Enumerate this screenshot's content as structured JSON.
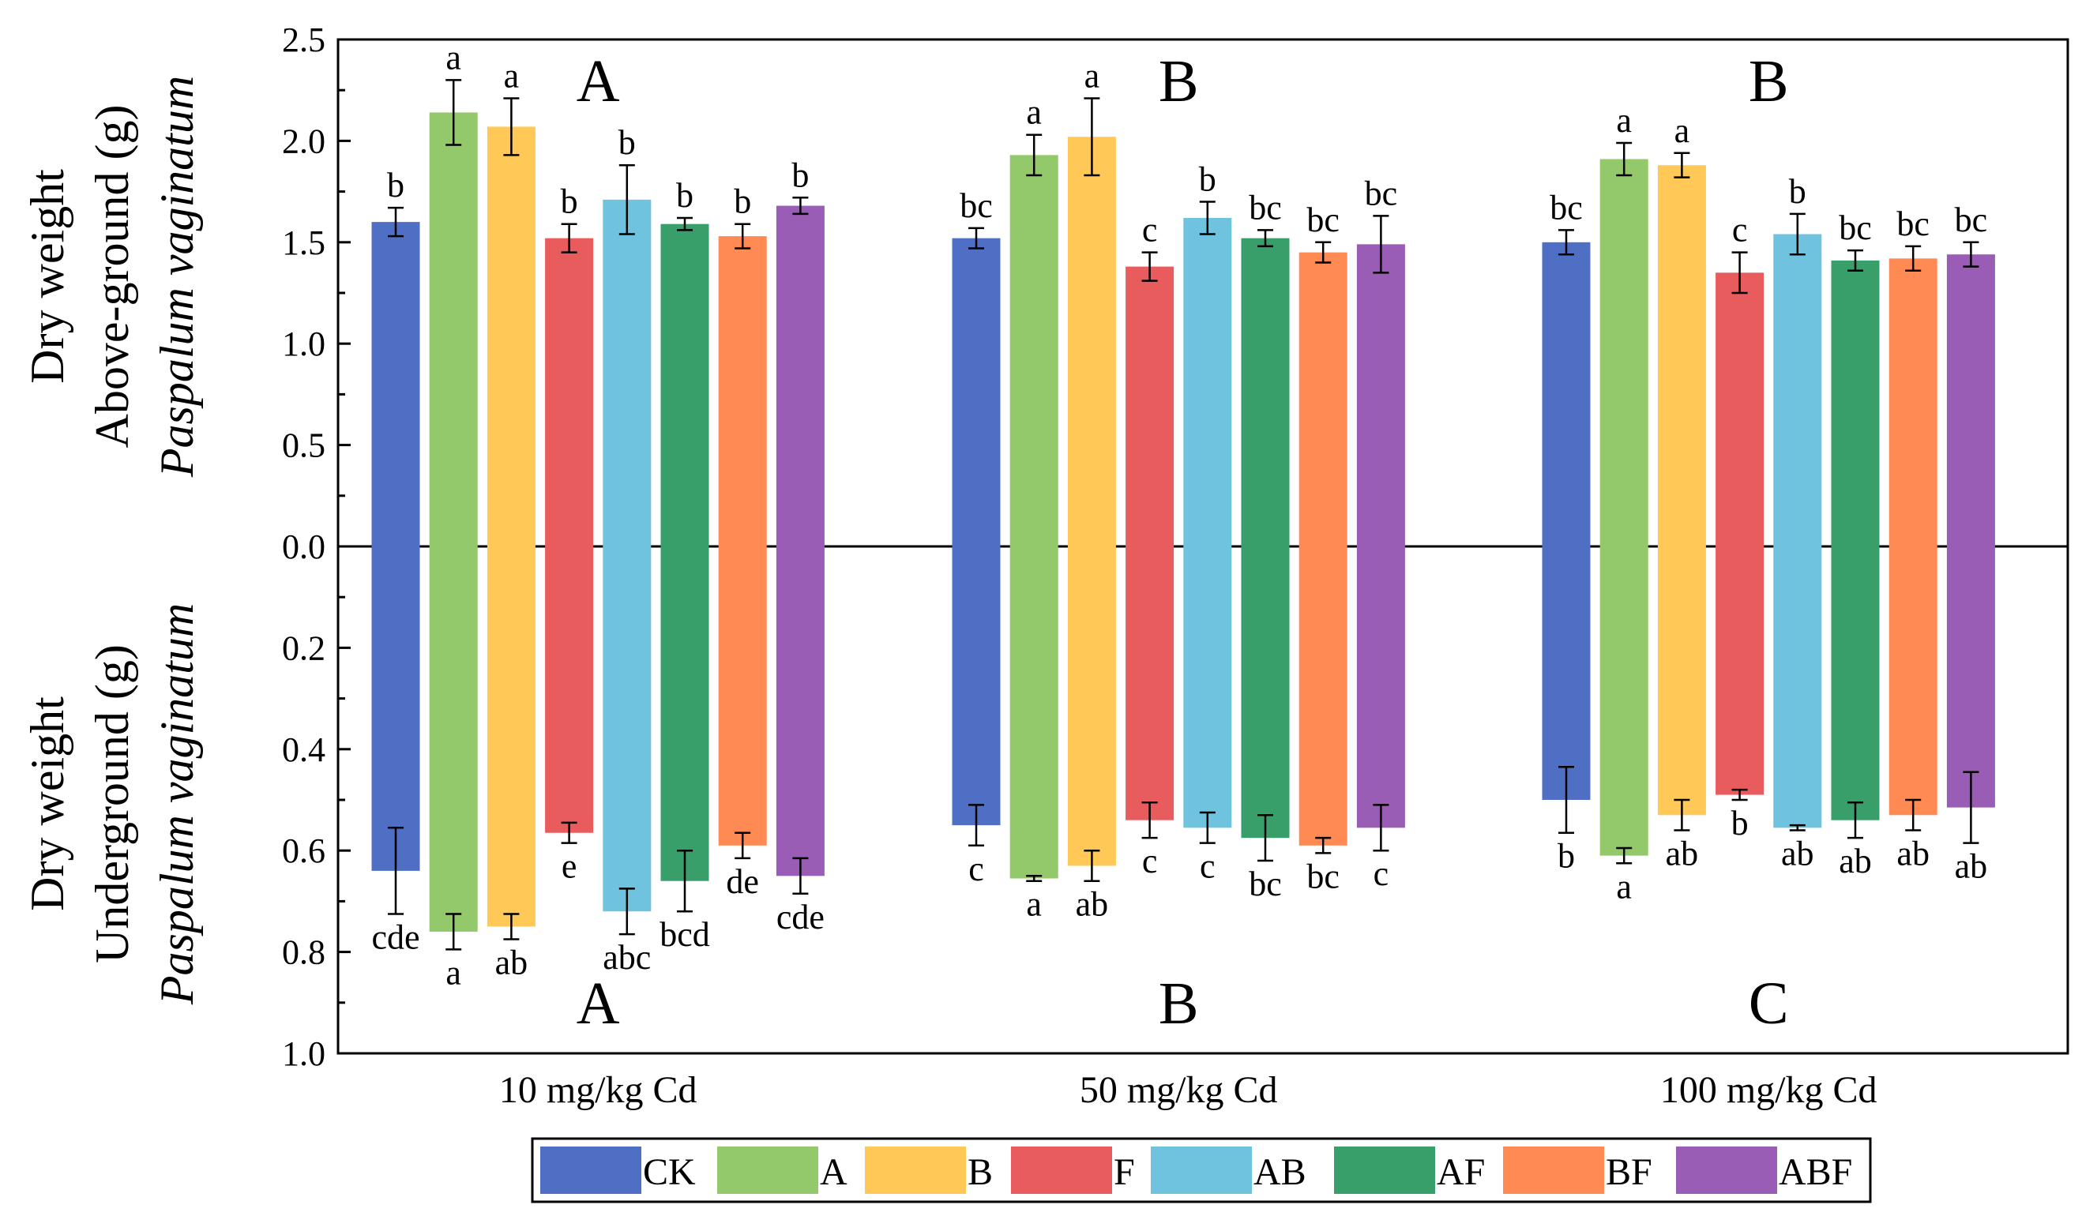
{
  "chart_data": {
    "type": "bar",
    "categories": [
      "10 mg/kg Cd",
      "50 mg/kg Cd",
      "100 mg/kg Cd"
    ],
    "series_names": [
      "CK",
      "A",
      "B",
      "F",
      "AB",
      "AF",
      "BF",
      "ABF"
    ],
    "colors": [
      "#4F6FC4",
      "#93C96A",
      "#FFC857",
      "#E85C5E",
      "#6FC3DE",
      "#389E6A",
      "#FF8A54",
      "#9A5DB5"
    ],
    "top_panel": {
      "ylabel_lines": [
        "Dry weight",
        "Above-ground (g)",
        "Paspalum vaginatum"
      ],
      "ylim": [
        0,
        2.5
      ],
      "tick_labels": [
        "0.0",
        "0.5",
        "1.0",
        "1.5",
        "2.0",
        "2.5"
      ],
      "values": [
        [
          1.6,
          2.14,
          2.07,
          1.52,
          1.71,
          1.59,
          1.53,
          1.68
        ],
        [
          1.52,
          1.93,
          2.02,
          1.38,
          1.62,
          1.52,
          1.45,
          1.49
        ],
        [
          1.5,
          1.91,
          1.88,
          1.35,
          1.54,
          1.41,
          1.42,
          1.44
        ]
      ],
      "errors": [
        [
          0.07,
          0.16,
          0.14,
          0.07,
          0.17,
          0.03,
          0.06,
          0.04
        ],
        [
          0.05,
          0.1,
          0.19,
          0.07,
          0.08,
          0.04,
          0.05,
          0.14
        ],
        [
          0.06,
          0.08,
          0.06,
          0.1,
          0.1,
          0.05,
          0.06,
          0.06
        ]
      ],
      "sig_letters": [
        [
          "b",
          "a",
          "a",
          "b",
          "b",
          "b",
          "b",
          "b"
        ],
        [
          "bc",
          "a",
          "a",
          "c",
          "b",
          "bc",
          "bc",
          "bc"
        ],
        [
          "bc",
          "a",
          "a",
          "c",
          "b",
          "bc",
          "bc",
          "bc"
        ]
      ],
      "group_letters": [
        "A",
        "B",
        "B"
      ]
    },
    "bottom_panel": {
      "ylabel_lines": [
        "Dry weight",
        "Underground (g)",
        "Paspalum vaginatum"
      ],
      "ylim": [
        0,
        1.0
      ],
      "tick_labels": [
        "0.2",
        "0.4",
        "0.6",
        "0.8",
        "1.0"
      ],
      "values": [
        [
          0.64,
          0.76,
          0.75,
          0.565,
          0.72,
          0.66,
          0.59,
          0.65
        ],
        [
          0.55,
          0.655,
          0.63,
          0.54,
          0.555,
          0.575,
          0.59,
          0.555
        ],
        [
          0.5,
          0.61,
          0.53,
          0.49,
          0.555,
          0.54,
          0.53,
          0.515
        ]
      ],
      "errors": [
        [
          0.085,
          0.035,
          0.025,
          0.02,
          0.045,
          0.06,
          0.025,
          0.035
        ],
        [
          0.04,
          0.005,
          0.03,
          0.035,
          0.03,
          0.045,
          0.015,
          0.045
        ],
        [
          0.065,
          0.015,
          0.03,
          0.01,
          0.005,
          0.035,
          0.03,
          0.07
        ]
      ],
      "sig_letters": [
        [
          "cde",
          "a",
          "ab",
          "e",
          "abc",
          "bcd",
          "de",
          "cde"
        ],
        [
          "c",
          "a",
          "ab",
          "c",
          "c",
          "bc",
          "bc",
          "c"
        ],
        [
          "b",
          "a",
          "ab",
          "b",
          "ab",
          "ab",
          "ab",
          "ab"
        ]
      ],
      "group_letters": [
        "A",
        "B",
        "C"
      ]
    }
  }
}
